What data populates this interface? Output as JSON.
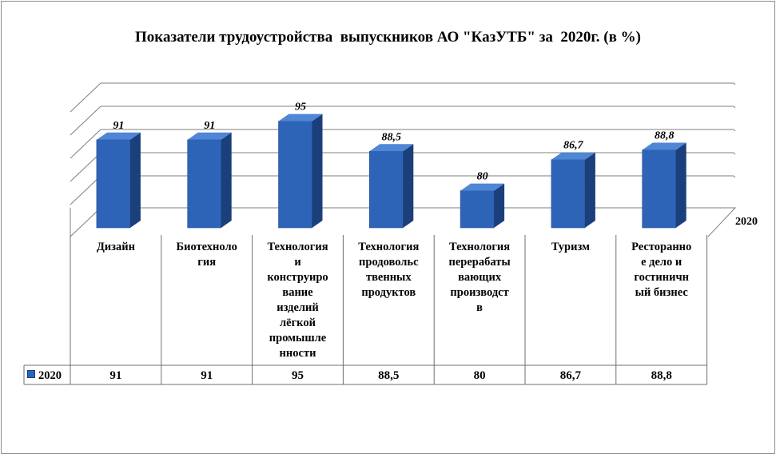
{
  "title": "Показатели трудоустройства  выпускников АО \"КазУТБ\" за  2020г. (в %)",
  "chart_data": {
    "type": "bar",
    "three_d": true,
    "categories": [
      "Дизайн",
      "Биотехнология",
      "Технология и конструирование изделий лёгкой промышленности",
      "Технология продовольственных продуктов",
      "Технология перерабатывающих производств",
      "Туризм",
      "Ресторанное дело и гостиничный бизнес"
    ],
    "category_lines": [
      [
        "Дизайн"
      ],
      [
        "Биотехноло",
        "гия"
      ],
      [
        "Технология",
        "и",
        "конструиро",
        "вание",
        "изделий",
        "лёгкой",
        "промышле",
        "нности"
      ],
      [
        "Технология",
        "продовольс",
        "твенных",
        "продуктов"
      ],
      [
        "Технология",
        "перерабаты",
        "вающих",
        "производст",
        "в"
      ],
      [
        "Туризм"
      ],
      [
        "Ресторанно",
        "е дело и",
        "гостиничн",
        "ый бизнес"
      ]
    ],
    "series": [
      {
        "name": "2020",
        "values": [
          91,
          91,
          95,
          88.5,
          80,
          86.7,
          88.8
        ],
        "data_labels": [
          "91",
          "91",
          "95",
          "88,5",
          "80",
          "86,7",
          "88,8"
        ],
        "table_values": [
          "91",
          "91",
          "95",
          "88,5",
          "80",
          "86,7",
          "88,8"
        ]
      }
    ],
    "depth_axis_label": "2020",
    "data_table": true,
    "legend": "in data table",
    "gridlines": true,
    "ylim": [
      72,
      97
    ],
    "colors": {
      "bar_front": "#2e64b8",
      "bar_side": "#1b3f7a",
      "bar_top": "#4f86d6",
      "grid": "#7f7f7f"
    }
  }
}
